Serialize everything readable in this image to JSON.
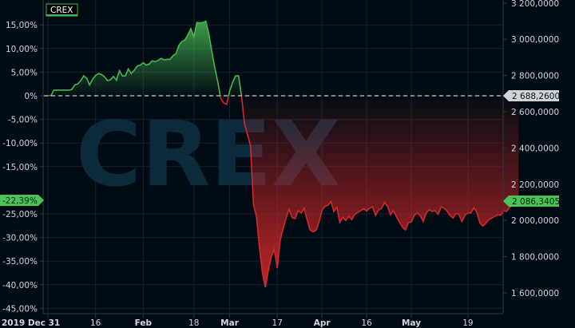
{
  "chart_data": {
    "type": "area",
    "legend": "CREX",
    "watermark": "CREX",
    "baseline_price": "2 688,2600",
    "current_price": "2 086,3405",
    "current_pct": "-22,39%",
    "left_ticks": [
      {
        "v": 15,
        "label": "15,00%"
      },
      {
        "v": 10,
        "label": "10,00%"
      },
      {
        "v": 5,
        "label": "5,00%"
      },
      {
        "v": 0,
        "label": "0%"
      },
      {
        "v": -5,
        "label": "-5,00%"
      },
      {
        "v": -10,
        "label": "-10,00%"
      },
      {
        "v": -15,
        "label": "-15,00%"
      },
      {
        "v": -25,
        "label": "-25,00%"
      },
      {
        "v": -30,
        "label": "-30,00%"
      },
      {
        "v": -35,
        "label": "-35,00%"
      },
      {
        "v": -40,
        "label": "-40,00%"
      },
      {
        "v": -45,
        "label": "-45,00%"
      }
    ],
    "right_ticks": [
      {
        "v": 3200000,
        "label": "3 200,0000"
      },
      {
        "v": 3000000,
        "label": "3 000,0000"
      },
      {
        "v": 2800000,
        "label": "2 800,0000"
      },
      {
        "v": 2600000,
        "label": "2 600,0000"
      },
      {
        "v": 2400000,
        "label": "2 400,0000"
      },
      {
        "v": 2200000,
        "label": "2 200,0000"
      },
      {
        "v": 2000000,
        "label": "2 000,0000"
      },
      {
        "v": 1800000,
        "label": "1 800,0000"
      },
      {
        "v": 1600000,
        "label": "1 600,0000"
      }
    ],
    "x_ticks": [
      {
        "day": 0,
        "label": "2019 Dec 31",
        "bold": true
      },
      {
        "day": 16,
        "label": "16",
        "bold": false
      },
      {
        "day": 32,
        "label": "Feb",
        "bold": true
      },
      {
        "day": 49,
        "label": "18",
        "bold": false
      },
      {
        "day": 61,
        "label": "Mar",
        "bold": true
      },
      {
        "day": 77,
        "label": "17",
        "bold": false
      },
      {
        "day": 92,
        "label": "Apr",
        "bold": true
      },
      {
        "day": 107,
        "label": "16",
        "bold": false
      },
      {
        "day": 122,
        "label": "May",
        "bold": true
      },
      {
        "day": 141,
        "label": "19",
        "bold": false
      }
    ],
    "x_range": [
      -1,
      152
    ],
    "y_range": [
      -45.5,
      19.5
    ],
    "points": [
      [
        0,
        0
      ],
      [
        1,
        0
      ],
      [
        2,
        1.2
      ],
      [
        3,
        1.2
      ],
      [
        4,
        1.2
      ],
      [
        5,
        1.2
      ],
      [
        6,
        1.2
      ],
      [
        7,
        1.2
      ],
      [
        8,
        1.3
      ],
      [
        9,
        2.3
      ],
      [
        10,
        2.5
      ],
      [
        11,
        3.2
      ],
      [
        12,
        4.2
      ],
      [
        13,
        3.7
      ],
      [
        14,
        2.3
      ],
      [
        15,
        3.5
      ],
      [
        16,
        4.3
      ],
      [
        17,
        4.7
      ],
      [
        18,
        4.5
      ],
      [
        19,
        4
      ],
      [
        20,
        3.2
      ],
      [
        21,
        3.4
      ],
      [
        22,
        4.1
      ],
      [
        23,
        3.3
      ],
      [
        24,
        5.3
      ],
      [
        25,
        4.2
      ],
      [
        26,
        4.2
      ],
      [
        27,
        5.7
      ],
      [
        28,
        4.7
      ],
      [
        29,
        5.4
      ],
      [
        30,
        6.3
      ],
      [
        31,
        6.5
      ],
      [
        32,
        7
      ],
      [
        33,
        6.5
      ],
      [
        34,
        6.7
      ],
      [
        35,
        7.4
      ],
      [
        36,
        7.2
      ],
      [
        37,
        7.5
      ],
      [
        38,
        7.9
      ],
      [
        39,
        7.6
      ],
      [
        40,
        7.7
      ],
      [
        41,
        7.7
      ],
      [
        42,
        8.5
      ],
      [
        43,
        8.9
      ],
      [
        44,
        10.7
      ],
      [
        45,
        11.5
      ],
      [
        46,
        11.8
      ],
      [
        47,
        12.9
      ],
      [
        48,
        14.2
      ],
      [
        49,
        12.5
      ],
      [
        50,
        15.5
      ],
      [
        51,
        15.4
      ],
      [
        52,
        15.5
      ],
      [
        53,
        15.8
      ],
      [
        54,
        13.2
      ],
      [
        55,
        9.5
      ],
      [
        56,
        6
      ],
      [
        57,
        3
      ],
      [
        58,
        -0.5
      ],
      [
        59,
        -1.5
      ],
      [
        60,
        -1.8
      ],
      [
        61,
        1
      ],
      [
        62,
        2.8
      ],
      [
        63,
        4.2
      ],
      [
        64,
        4.2
      ],
      [
        65,
        0
      ],
      [
        66,
        -6
      ],
      [
        67,
        -8.2
      ],
      [
        68,
        -10.5
      ],
      [
        69,
        -23
      ],
      [
        70,
        -25.5
      ],
      [
        71,
        -32
      ],
      [
        72,
        -37.5
      ],
      [
        73,
        -40.5
      ],
      [
        74,
        -37
      ],
      [
        75,
        -34
      ],
      [
        76,
        -32.5
      ],
      [
        77,
        -36.5
      ],
      [
        78,
        -30.5
      ],
      [
        79,
        -28
      ],
      [
        80,
        -25.8
      ],
      [
        81,
        -24
      ],
      [
        82,
        -25.8
      ],
      [
        83,
        -26
      ],
      [
        84,
        -24.3
      ],
      [
        85,
        -24.8
      ],
      [
        86,
        -23.8
      ],
      [
        87,
        -26.2
      ],
      [
        88,
        -28.4
      ],
      [
        89,
        -28.8
      ],
      [
        90,
        -28.5
      ],
      [
        91,
        -26.8
      ],
      [
        92,
        -24.2
      ],
      [
        93,
        -23.4
      ],
      [
        94,
        -23.2
      ],
      [
        95,
        -22.4
      ],
      [
        96,
        -24.5
      ],
      [
        97,
        -23.6
      ],
      [
        98,
        -26.8
      ],
      [
        99,
        -25.7
      ],
      [
        100,
        -26.4
      ],
      [
        101,
        -25.5
      ],
      [
        102,
        -26.2
      ],
      [
        103,
        -25.1
      ],
      [
        104,
        -24.7
      ],
      [
        105,
        -24.3
      ],
      [
        106,
        -23.9
      ],
      [
        107,
        -24.4
      ],
      [
        108,
        -23.8
      ],
      [
        109,
        -23.5
      ],
      [
        110,
        -25.3
      ],
      [
        111,
        -24.2
      ],
      [
        112,
        -23.8
      ],
      [
        113,
        -22.6
      ],
      [
        114,
        -23.4
      ],
      [
        115,
        -25.2
      ],
      [
        116,
        -24.3
      ],
      [
        117,
        -25.6
      ],
      [
        118,
        -26.7
      ],
      [
        119,
        -27.8
      ],
      [
        120,
        -28.4
      ],
      [
        121,
        -26.9
      ],
      [
        122,
        -26.7
      ],
      [
        123,
        -25.3
      ],
      [
        124,
        -24.8
      ],
      [
        125,
        -25.4
      ],
      [
        126,
        -26.6
      ],
      [
        127,
        -24.8
      ],
      [
        128,
        -24.1
      ],
      [
        129,
        -24.5
      ],
      [
        130,
        -24.3
      ],
      [
        131,
        -25.1
      ],
      [
        132,
        -23.5
      ],
      [
        133,
        -23.8
      ],
      [
        134,
        -24.4
      ],
      [
        135,
        -25.3
      ],
      [
        136,
        -25.9
      ],
      [
        137,
        -24.9
      ],
      [
        138,
        -25.1
      ],
      [
        139,
        -26.6
      ],
      [
        140,
        -25.3
      ],
      [
        141,
        -24.8
      ],
      [
        142,
        -24.8
      ],
      [
        143,
        -23.7
      ],
      [
        144,
        -24.7
      ],
      [
        145,
        -26.9
      ],
      [
        146,
        -27.6
      ],
      [
        147,
        -27
      ],
      [
        148,
        -26.2
      ],
      [
        149,
        -25.9
      ],
      [
        150,
        -25.5
      ],
      [
        151,
        -25.2
      ],
      [
        152,
        -25.3
      ],
      [
        153,
        -24.3
      ],
      [
        154,
        -24.5
      ],
      [
        155,
        -23.6
      ],
      [
        156,
        -23.2
      ],
      [
        157,
        -23.4
      ],
      [
        158,
        -22.4
      ]
    ],
    "colors": {
      "positive": "#48b752",
      "negative": "#d4282a",
      "baseline": "#c8cdd2",
      "grid": "#14222d",
      "label_green": "#4cc25a",
      "label_gray": "#cfd4d8"
    }
  }
}
